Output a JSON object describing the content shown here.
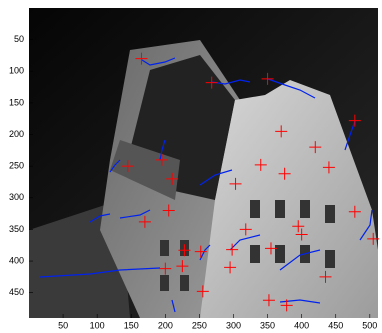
{
  "chart_data": {
    "type": "scatter",
    "x": [
      165,
      268,
      350,
      478,
      370,
      420,
      195,
      145,
      210,
      303,
      340,
      375,
      440,
      205,
      170,
      395,
      400,
      478,
      505,
      318,
      228,
      252,
      298,
      355,
      225,
      295,
      200,
      435,
      255,
      352,
      378
    ],
    "values": [
      80,
      118,
      112,
      178,
      195,
      220,
      240,
      250,
      270,
      278,
      248,
      262,
      252,
      320,
      338,
      345,
      358,
      322,
      365,
      350,
      383,
      385,
      382,
      380,
      408,
      410,
      412,
      425,
      448,
      462,
      470
    ],
    "color": "#ff0000",
    "marker": "+",
    "xlim": [
      0,
      512
    ],
    "ylim": [
      0,
      490
    ],
    "y_reversed": true,
    "xticks": [
      50,
      100,
      150,
      200,
      250,
      300,
      350,
      400,
      450,
      500
    ],
    "yticks": [
      50,
      100,
      150,
      200,
      250,
      300,
      350,
      400,
      450
    ]
  }
}
